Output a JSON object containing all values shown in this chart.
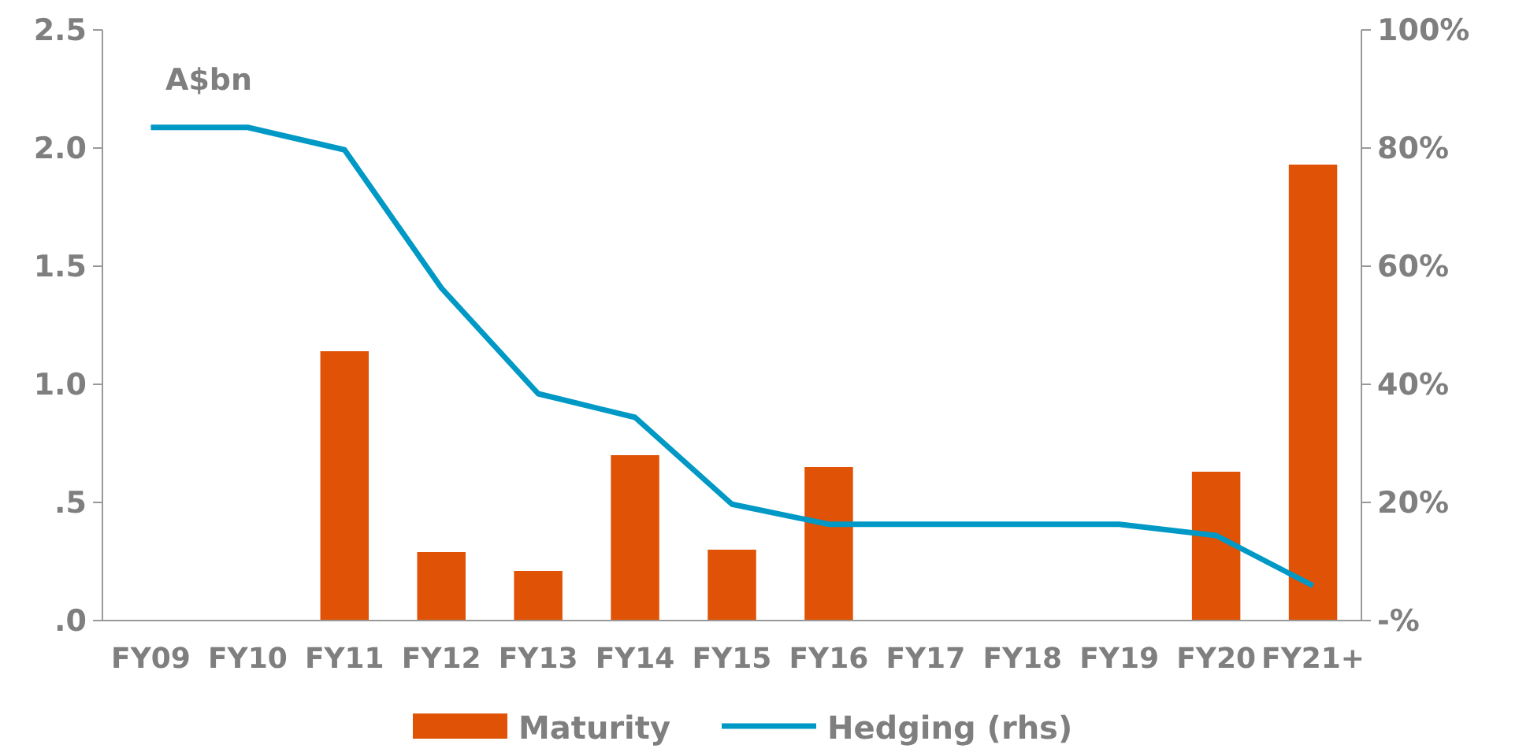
{
  "chart_data": {
    "type": "bar",
    "categories": [
      "FY09",
      "FY10",
      "FY11",
      "FY12",
      "FY13",
      "FY14",
      "FY15",
      "FY16",
      "FY17",
      "FY18",
      "FY19",
      "FY20",
      "FY21+"
    ],
    "series": [
      {
        "name": "Maturity",
        "color": "#e05206",
        "values": [
          0,
          0,
          1.14,
          0.29,
          0.21,
          0.7,
          0.3,
          0.65,
          0,
          0,
          0,
          0.63,
          1.93
        ]
      },
      {
        "name": "Hedging (rhs)",
        "type": "line",
        "axis": "y2",
        "color": "#0099c6",
        "values": [
          83.5,
          83.5,
          79.7,
          56.3,
          38.4,
          34.4,
          19.7,
          16.3,
          16.3,
          16.3,
          16.3,
          14.4,
          5.9
        ]
      }
    ],
    "ylim": [
      0,
      2.5
    ],
    "yticks": [
      {
        "value": 0,
        "label": ".0"
      },
      {
        "value": 0.5,
        "label": ".5"
      },
      {
        "value": 1,
        "label": "1.0"
      },
      {
        "value": 1.5,
        "label": "1.5"
      },
      {
        "value": 2,
        "label": "2.0"
      },
      {
        "value": 2.5,
        "label": "2.5"
      }
    ],
    "y2lim": [
      0,
      100
    ],
    "y2ticks": [
      {
        "value": 0,
        "label": "-%"
      },
      {
        "value": 20,
        "label": "20%"
      },
      {
        "value": 40,
        "label": "40%"
      },
      {
        "value": 60,
        "label": "60%"
      },
      {
        "value": 80,
        "label": "80%"
      },
      {
        "value": 100,
        "label": "100%"
      }
    ],
    "annotations": [
      "A$bn"
    ],
    "legend": "bottom",
    "grid": false,
    "marker": "none",
    "line_style": "solid"
  }
}
